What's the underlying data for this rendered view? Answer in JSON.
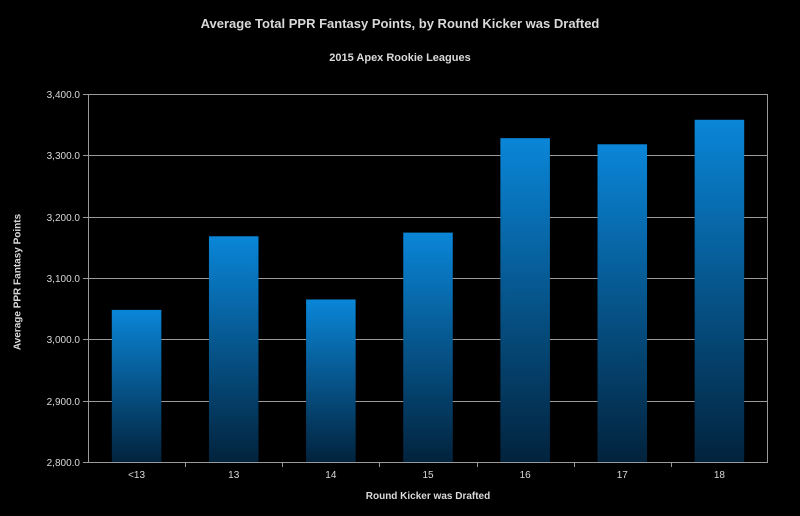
{
  "chart_data": {
    "type": "bar",
    "title": "Average Total PPR Fantasy Points, by Round Kicker was Drafted",
    "subtitle": "2015 Apex Rookie Leagues",
    "xlabel": "Round Kicker was Drafted",
    "ylabel": "Average PPR Fantasy Points",
    "categories": [
      "<13",
      "13",
      "14",
      "15",
      "16",
      "17",
      "18"
    ],
    "values": [
      3048,
      3168,
      3065,
      3174,
      3328,
      3318,
      3358
    ],
    "ylim": [
      2800,
      3400
    ],
    "yticks": [
      2800,
      2900,
      3000,
      3100,
      3200,
      3300,
      3400
    ],
    "ytick_labels": [
      "2,800.0",
      "2,900.0",
      "3,000.0",
      "3,100.0",
      "3,200.0",
      "3,300.0",
      "3,400.0"
    ],
    "grid": true,
    "legend": "none",
    "colors": {
      "background": "#000000",
      "bar_top": "#0a86d8",
      "bar_bottom": "#02233d",
      "grid": "#9a9a9a",
      "text": "#d9d9d9"
    }
  }
}
